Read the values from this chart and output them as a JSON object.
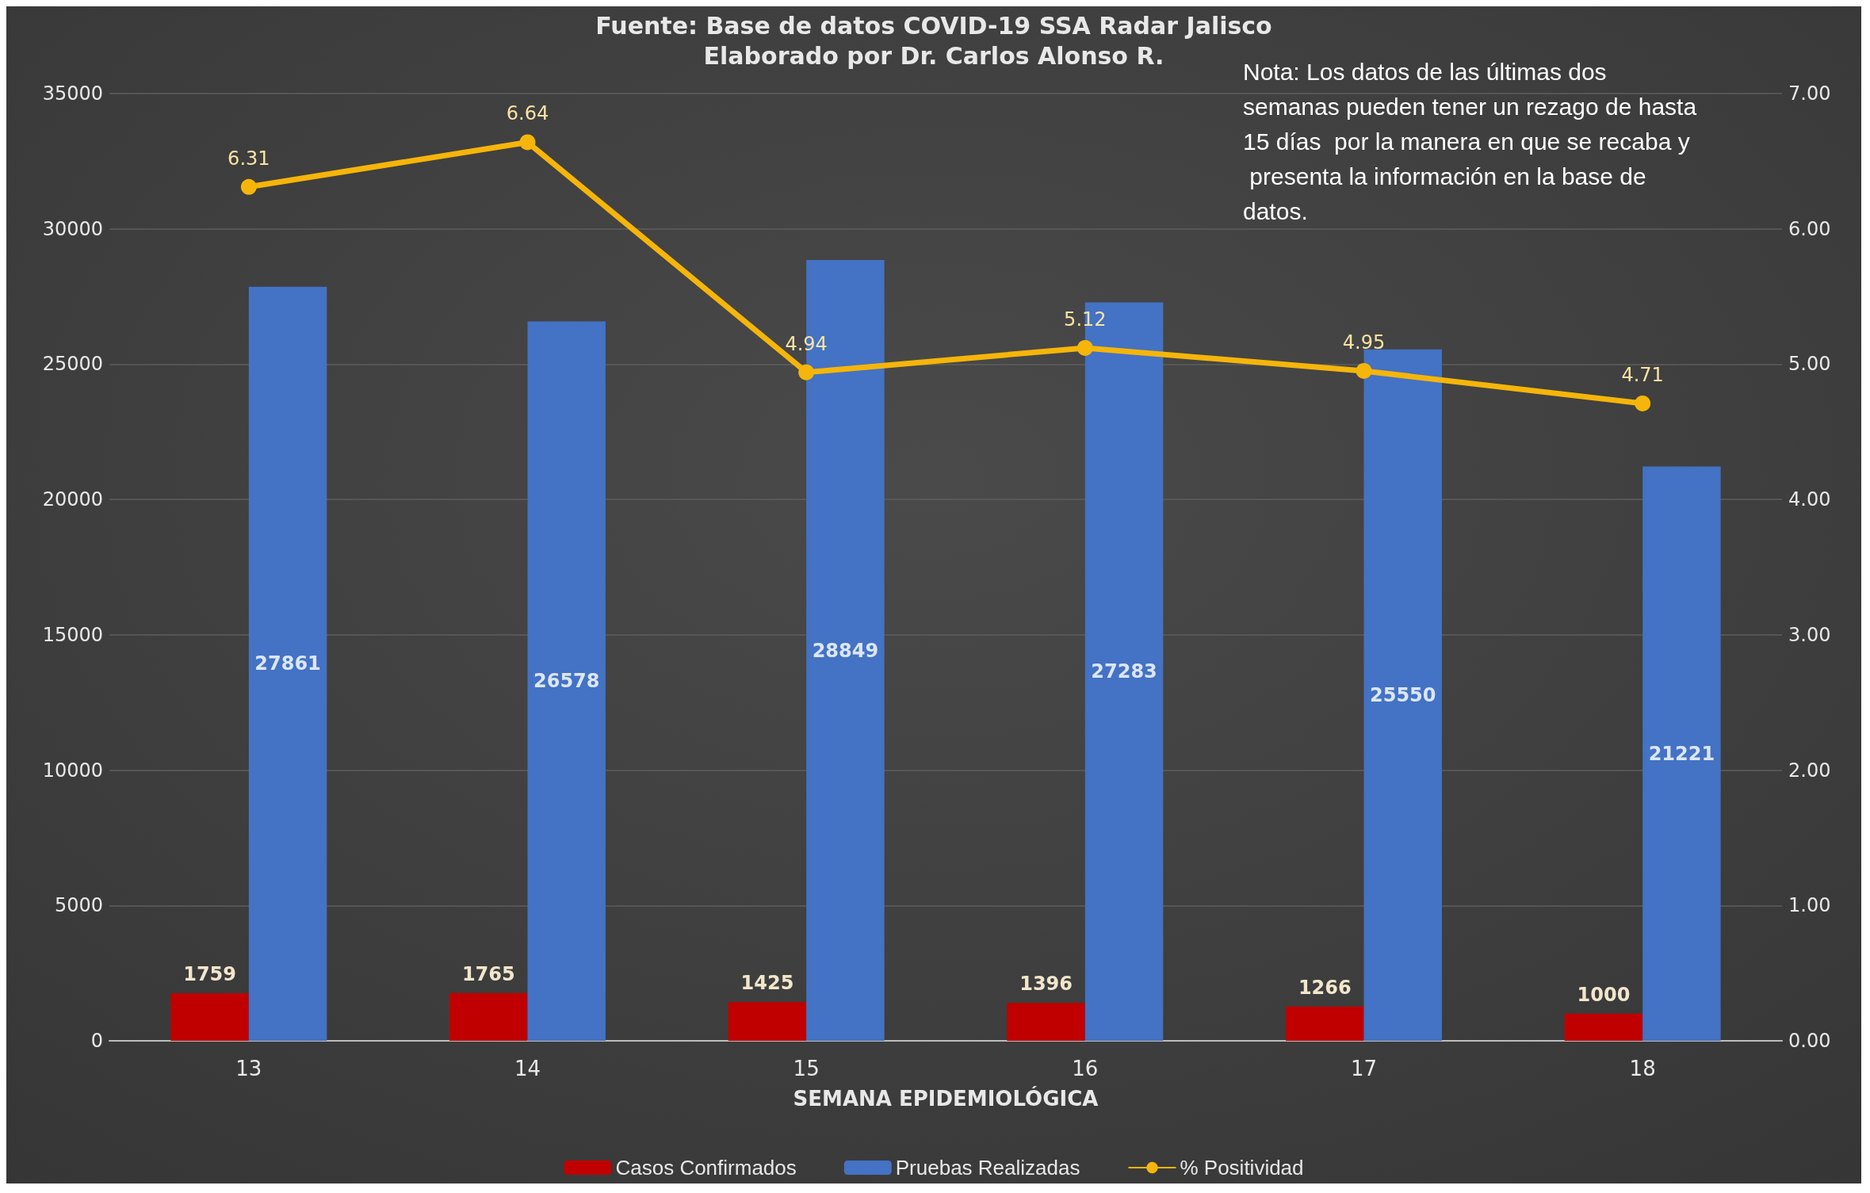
{
  "chart_data": {
    "type": "bar",
    "title": "Fuente: Base de datos COVID-19 SSA Radar Jalisco",
    "subtitle": "Elaborado por Dr. Carlos Alonso R.",
    "xlabel": "SEMANA EPIDEMIOLÓGICA",
    "annotations": [
      "Nota: Los datos de las últimas dos semanas pueden tener un rezago de hasta 15 días  por la manera en que se recaba y presenta la información en la base de datos."
    ],
    "categories": [
      "13",
      "14",
      "15",
      "16",
      "17",
      "18"
    ],
    "series": [
      {
        "name": "Casos Confirmados",
        "color": "#c00000",
        "values": [
          1759,
          1765,
          1425,
          1396,
          1266,
          1000
        ]
      },
      {
        "name": "Pruebas Realizadas",
        "color": "#4472c4",
        "values": [
          27861,
          26578,
          28849,
          27283,
          25550,
          21221
        ]
      },
      {
        "name": "% Positividad",
        "type": "line",
        "axis": "y2",
        "color": "#f5b50a",
        "values": [
          6.31,
          6.64,
          4.94,
          5.12,
          4.95,
          4.71
        ]
      }
    ],
    "ylim": [
      0,
      35000
    ],
    "yticks": [
      0,
      5000,
      10000,
      15000,
      20000,
      25000,
      30000,
      35000
    ],
    "y2lim": [
      0,
      7
    ],
    "y2ticks": [
      {
        "value": 0,
        "label": "0.00"
      },
      {
        "value": 1,
        "label": "1.00"
      },
      {
        "value": 2,
        "label": "2.00"
      },
      {
        "value": 3,
        "label": "3.00"
      },
      {
        "value": 4,
        "label": "4.00"
      },
      {
        "value": 5,
        "label": "5.00"
      },
      {
        "value": 6,
        "label": "6.00"
      },
      {
        "value": 7,
        "label": "7.00"
      }
    ],
    "grid": "y",
    "legend": "bottom",
    "marker": "circle",
    "line_style": "solid",
    "data_labels": true
  }
}
